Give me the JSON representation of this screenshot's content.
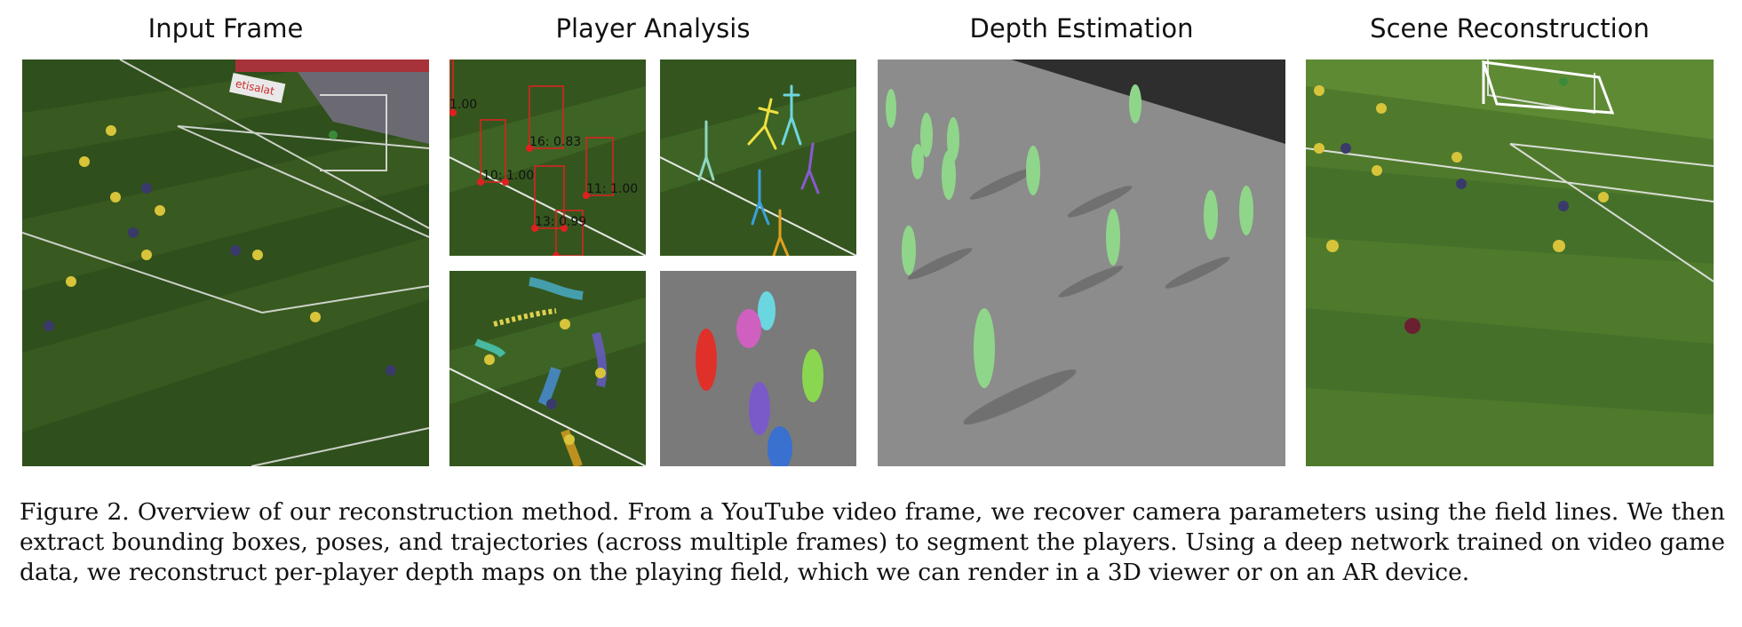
{
  "columns": {
    "input_title": "Input Frame",
    "analysis_title": "Player Analysis",
    "depth_title": "Depth Estimation",
    "recon_title": "Scene Reconstruction"
  },
  "input_frame": {
    "billboard_text": "etisalat"
  },
  "bbox_labels": [
    "1.00",
    "16: 0.83",
    "10: 1.00",
    "11: 1.00",
    "13: 0.99"
  ],
  "caption": {
    "text": "Figure 2. Overview of our reconstruction method. From a YouTube video frame, we recover camera parameters using the field lines. We then extract bounding boxes, poses, and trajectories (across multiple frames) to segment the players. Using a deep network trained on video game data, we reconstruct per-player depth maps on the playing field, which we can render in a 3D viewer or on an AR device."
  },
  "colors": {
    "pitch_dark": "#2f4f1c",
    "pitch_light": "#3d6424",
    "bbox_red": "#e02020",
    "depth_gray": "#8c8c8c",
    "player_green": "#8fd68a",
    "seg_gray": "#7a7a7a"
  }
}
